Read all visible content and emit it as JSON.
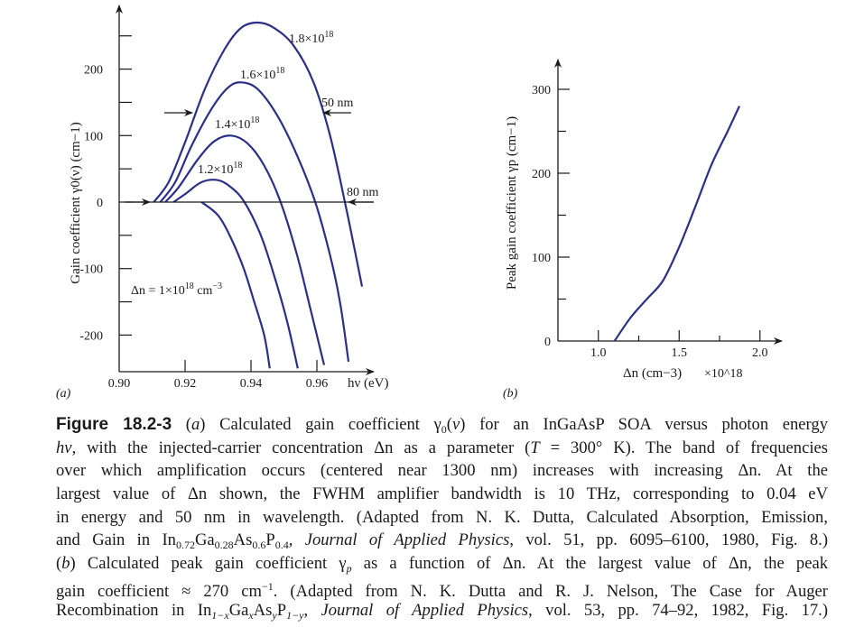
{
  "chart_data": [
    {
      "type": "line",
      "panel_label": "(a)",
      "xlabel": "hν (eV)",
      "ylabel": "Gain coefficient γ0(ν) (cm−1)",
      "xlim": [
        0.9,
        0.975
      ],
      "ylim": [
        -250,
        290
      ],
      "x_ticks": [
        "0.90",
        "0.92",
        "0.94",
        "0.96"
      ],
      "y_ticks": [
        "200",
        "100",
        "0",
        "-100",
        "-200"
      ],
      "grid": false,
      "curve_color": "#2c2f86",
      "series": [
        {
          "name": "Δn = 1×10^18 cm^−3",
          "x": [
            0.925,
            0.93,
            0.934,
            0.9378,
            0.941,
            0.944,
            0.9457
          ],
          "y": [
            0,
            -20,
            -55,
            -100,
            -150,
            -200,
            -250
          ]
        },
        {
          "name": "1.2×10^18",
          "x": [
            0.9165,
            0.92,
            0.925,
            0.93,
            0.934,
            0.938,
            0.943,
            0.947,
            0.951,
            0.9542
          ],
          "y": [
            0,
            12,
            30,
            33,
            22,
            0,
            -50,
            -110,
            -180,
            -250
          ]
        },
        {
          "name": "1.4×10^18",
          "x": [
            0.914,
            0.918,
            0.924,
            0.929,
            0.934,
            0.939,
            0.944,
            0.949,
            0.954,
            0.958,
            0.9622
          ],
          "y": [
            0,
            22,
            65,
            92,
            100,
            88,
            55,
            0,
            -80,
            -160,
            -245
          ]
        },
        {
          "name": "1.6×10^18",
          "x": [
            0.9125,
            0.917,
            0.922,
            0.928,
            0.933,
            0.937,
            0.942,
            0.948,
            0.954,
            0.9595,
            0.964,
            0.967,
            0.9696
          ],
          "y": [
            0,
            30,
            85,
            140,
            172,
            180,
            170,
            130,
            70,
            0,
            -80,
            -150,
            -240
          ]
        },
        {
          "name": "1.8×10^18",
          "x": [
            0.9105,
            0.915,
            0.92,
            0.926,
            0.932,
            0.937,
            0.942,
            0.947,
            0.953,
            0.959,
            0.964,
            0.9685,
            0.971,
            0.9737
          ],
          "y": [
            0,
            30,
            90,
            170,
            230,
            262,
            270,
            262,
            235,
            180,
            100,
            0,
            -60,
            -127
          ]
        }
      ],
      "curve_labels": {
        "c18": {
          "base": "1.8×10",
          "exp": "18"
        },
        "c16": {
          "base": "1.6×10",
          "exp": "18"
        },
        "c14": {
          "base": "1.4×10",
          "exp": "18"
        },
        "c12": {
          "base": "1.2×10",
          "exp": "18"
        },
        "c10": {
          "base": "Δn = 1×10",
          "exp": "18",
          "unit": " cm",
          "unit_exp": "−3"
        }
      },
      "annotations": {
        "fwhm": "50 nm",
        "full": "80 nm"
      }
    },
    {
      "type": "line",
      "panel_label": "(b)",
      "xlabel": "Δn (cm−3)",
      "x_multiplier": "×10^18",
      "ylabel": "Peak gain coefficient γp (cm−1)",
      "xlim": [
        0.75,
        2.1
      ],
      "ylim": [
        0,
        330
      ],
      "x_ticks": [
        "1.0",
        "1.5",
        "2.0"
      ],
      "y_ticks": [
        "300",
        "200",
        "100",
        "0"
      ],
      "grid": false,
      "curve_color": "#2c2f86",
      "series": [
        {
          "x": [
            1.1,
            1.2,
            1.3,
            1.4,
            1.5,
            1.6,
            1.7,
            1.8,
            1.873
          ],
          "y": [
            0,
            28,
            50,
            72,
            112,
            160,
            210,
            250,
            280
          ]
        }
      ]
    }
  ],
  "caption": {
    "lines": [
      [
        {
          "t": "Figure 18.2-3",
          "s": "b"
        },
        {
          "t": "    (",
          "s": ""
        },
        {
          "t": "a",
          "s": "i"
        },
        {
          "t": ") Calculated gain coefficient γ",
          "s": ""
        },
        {
          "t": "0",
          "s": "sub"
        },
        {
          "t": "(",
          "s": ""
        },
        {
          "t": "ν",
          "s": "i"
        },
        {
          "t": ") for an InGaAsP SOA versus photon energy",
          "s": ""
        }
      ],
      [
        {
          "t": "hν",
          "s": "i"
        },
        {
          "t": ", with the injected-carrier concentration Δn as a parameter (",
          "s": ""
        },
        {
          "t": "T",
          "s": "i"
        },
        {
          "t": " = 300° K). The band of frequencies",
          "s": ""
        }
      ],
      [
        {
          "t": "over which amplification occurs (centered near 1300 nm) increases with increasing Δn. At the",
          "s": ""
        }
      ],
      [
        {
          "t": "largest value of Δn shown, the FWHM amplifier bandwidth is 10 THz, corresponding to 0.04 eV",
          "s": ""
        }
      ],
      [
        {
          "t": "in energy and 50 nm in wavelength. (Adapted from N. K. Dutta, Calculated Absorption, Emission,",
          "s": ""
        }
      ],
      [
        {
          "t": "and Gain in In",
          "s": ""
        },
        {
          "t": "0.72",
          "s": "sub"
        },
        {
          "t": "Ga",
          "s": ""
        },
        {
          "t": "0.28",
          "s": "sub"
        },
        {
          "t": "As",
          "s": ""
        },
        {
          "t": "0.6",
          "s": "sub"
        },
        {
          "t": "P",
          "s": ""
        },
        {
          "t": "0.4",
          "s": "sub"
        },
        {
          "t": ", ",
          "s": ""
        },
        {
          "t": "Journal of Applied Physics",
          "s": "i"
        },
        {
          "t": ", vol. 51, pp. 6095–6100, 1980, Fig. 8.)",
          "s": ""
        }
      ],
      [
        {
          "t": "(",
          "s": ""
        },
        {
          "t": "b",
          "s": "i"
        },
        {
          "t": ") Calculated peak gain coefficient γ",
          "s": ""
        },
        {
          "t": "p",
          "s": "subi"
        },
        {
          "t": " as a function of Δn. At the largest value of Δn, the peak",
          "s": ""
        }
      ],
      [
        {
          "t": "gain coefficient ≈ 270 cm",
          "s": ""
        },
        {
          "t": "−1",
          "s": "sup"
        },
        {
          "t": ". (Adapted from N. K. Dutta and R. J. Nelson, The Case for Auger",
          "s": ""
        }
      ],
      [
        {
          "t": "Recombination in In",
          "s": ""
        },
        {
          "t": "1−x",
          "s": "subi"
        },
        {
          "t": "Ga",
          "s": ""
        },
        {
          "t": "x",
          "s": "subi"
        },
        {
          "t": "As",
          "s": ""
        },
        {
          "t": "y",
          "s": "subi"
        },
        {
          "t": "P",
          "s": ""
        },
        {
          "t": "1−y",
          "s": "subi"
        },
        {
          "t": ", ",
          "s": ""
        },
        {
          "t": "Journal of Applied Physics",
          "s": "i"
        },
        {
          "t": ", vol. 53, pp. 74–92, 1982, Fig. 17.)",
          "s": ""
        }
      ]
    ]
  }
}
